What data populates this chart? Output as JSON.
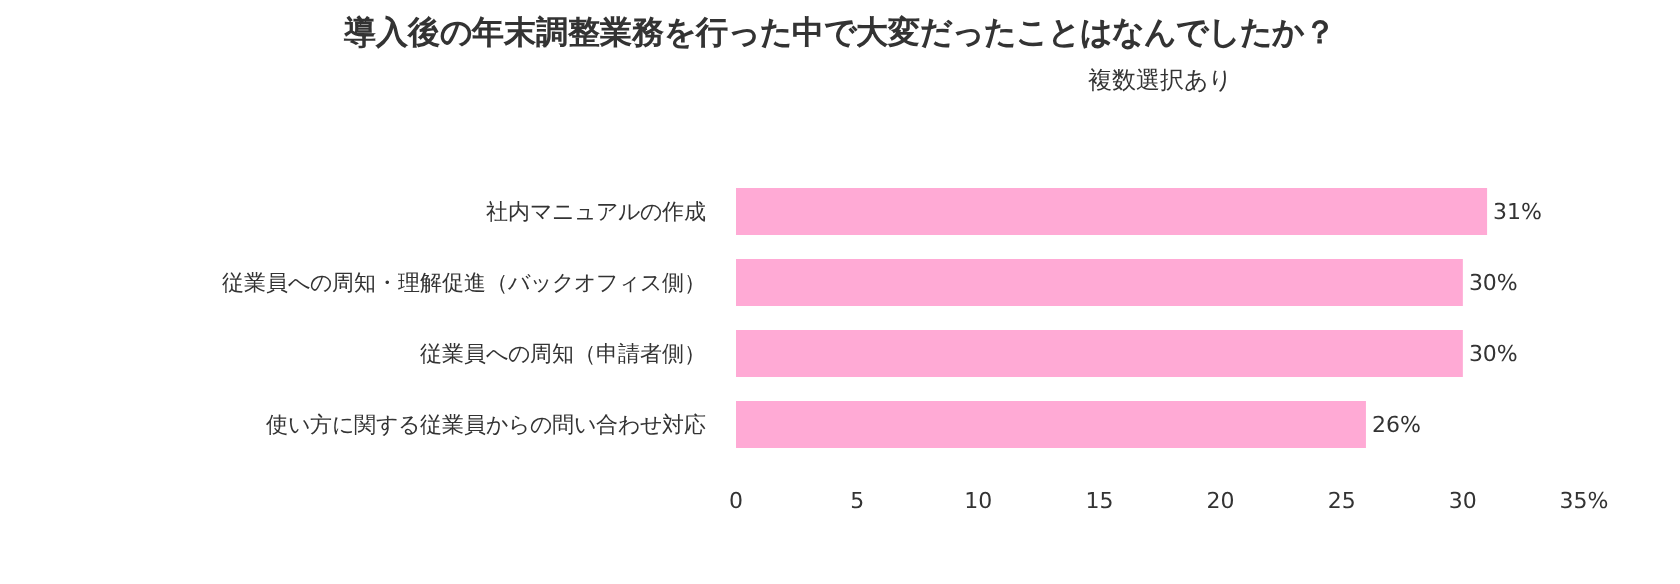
{
  "chart_data": {
    "type": "bar",
    "orientation": "horizontal",
    "title": "導入後の年末調整業務を行った中で大変だったことはなんでしたか？",
    "subtitle": "複数選択あり",
    "categories": [
      "社内マニュアルの作成",
      "従業員への周知・理解促進（バックオフィス側）",
      "従業員への周知（申請者側）",
      "使い方に関する従業員からの問い合わせ対応"
    ],
    "values": [
      31,
      30,
      30,
      26
    ],
    "value_labels": [
      "31%",
      "30%",
      "30%",
      "26%"
    ],
    "color": "#ffaad5",
    "xlim": [
      0,
      35
    ],
    "xticks": [
      0,
      5,
      10,
      15,
      20,
      25,
      30,
      {
        "value": 35,
        "label": "35%"
      }
    ],
    "legend": false
  }
}
